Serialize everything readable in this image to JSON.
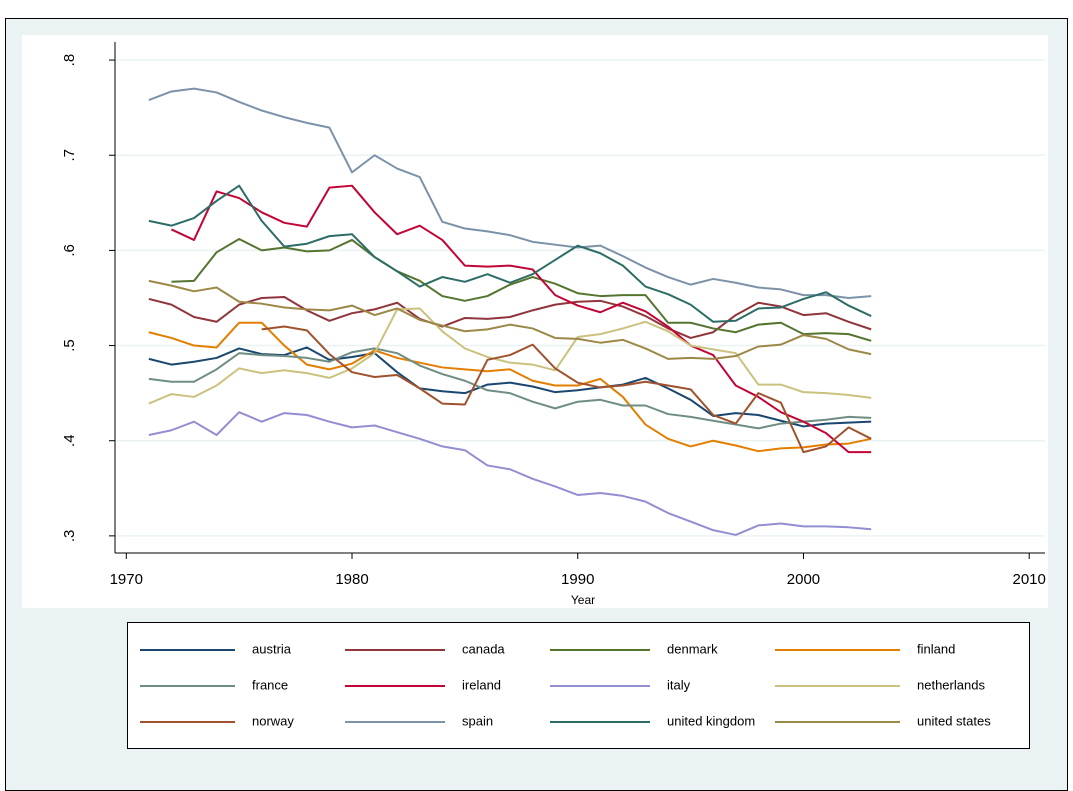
{
  "chart_data": {
    "type": "line",
    "x_label": "Year",
    "x": [
      1971,
      1972,
      1973,
      1974,
      1975,
      1976,
      1977,
      1978,
      1979,
      1980,
      1981,
      1982,
      1983,
      1984,
      1985,
      1986,
      1987,
      1988,
      1989,
      1990,
      1991,
      1992,
      1993,
      1994,
      1995,
      1996,
      1997,
      1998,
      1999,
      2000,
      2001,
      2002,
      2003
    ],
    "xlim": [
      1969.5,
      2010.7
    ],
    "xticks": [
      1970,
      1980,
      1990,
      2000,
      2010
    ],
    "ylim": [
      0.282,
      0.819
    ],
    "yticks": [
      {
        "value": 0.3,
        "label": ".3"
      },
      {
        "value": 0.4,
        "label": ".4"
      },
      {
        "value": 0.5,
        "label": ".5"
      },
      {
        "value": 0.6,
        "label": ".6"
      },
      {
        "value": 0.7,
        "label": ".7"
      },
      {
        "value": 0.8,
        "label": ".8"
      }
    ],
    "grid": true,
    "series": [
      {
        "name": "austria",
        "color": "#1a476f",
        "values": [
          0.486,
          0.48,
          0.483,
          0.487,
          0.497,
          0.491,
          0.49,
          0.498,
          0.485,
          0.488,
          0.492,
          0.472,
          0.455,
          0.452,
          0.45,
          0.459,
          0.461,
          0.457,
          0.451,
          0.453,
          0.456,
          0.459,
          0.466,
          0.455,
          0.443,
          0.426,
          0.429,
          0.427,
          0.421,
          0.415,
          0.418,
          0.419,
          0.42
        ]
      },
      {
        "name": "canada",
        "color": "#90353b",
        "values": [
          0.549,
          0.543,
          0.53,
          0.525,
          0.543,
          0.55,
          0.551,
          0.537,
          0.526,
          0.534,
          0.538,
          0.545,
          0.528,
          0.52,
          0.529,
          0.528,
          0.53,
          0.537,
          0.543,
          0.546,
          0.547,
          0.541,
          0.531,
          0.518,
          0.508,
          0.514,
          0.532,
          0.545,
          0.541,
          0.532,
          0.534,
          0.525,
          0.517
        ]
      },
      {
        "name": "denmark",
        "color": "#55752f",
        "values": [
          null,
          0.567,
          0.568,
          0.598,
          0.612,
          0.6,
          0.603,
          0.599,
          0.6,
          0.611,
          0.593,
          0.578,
          0.568,
          0.552,
          0.547,
          0.552,
          0.564,
          0.572,
          0.565,
          0.555,
          0.552,
          0.553,
          0.553,
          0.524,
          0.524,
          0.518,
          0.514,
          0.522,
          0.524,
          0.512,
          0.513,
          0.512,
          0.505
        ]
      },
      {
        "name": "finland",
        "color": "#e37e00",
        "values": [
          0.514,
          0.508,
          0.5,
          0.498,
          0.524,
          0.524,
          0.5,
          0.48,
          0.475,
          0.481,
          0.495,
          0.487,
          0.482,
          0.477,
          0.475,
          0.473,
          0.475,
          0.463,
          0.458,
          0.458,
          0.465,
          0.446,
          0.417,
          0.402,
          0.394,
          0.4,
          0.395,
          0.389,
          0.392,
          0.393,
          0.396,
          0.397,
          0.402
        ]
      },
      {
        "name": "france",
        "color": "#6e8e84",
        "values": [
          0.465,
          0.462,
          0.462,
          0.475,
          0.492,
          0.49,
          0.489,
          0.487,
          0.483,
          0.493,
          0.497,
          0.492,
          0.479,
          0.47,
          0.463,
          0.453,
          0.45,
          0.441,
          0.434,
          0.441,
          0.443,
          0.437,
          0.437,
          0.428,
          0.425,
          0.421,
          0.417,
          0.413,
          0.418,
          0.42,
          0.422,
          0.425,
          0.424
        ]
      },
      {
        "name": "ireland",
        "color": "#c10534",
        "values": [
          null,
          0.622,
          0.611,
          0.662,
          0.655,
          0.64,
          0.629,
          0.625,
          0.666,
          0.668,
          0.64,
          0.617,
          0.626,
          0.611,
          0.584,
          0.583,
          0.584,
          0.58,
          0.553,
          0.542,
          0.535,
          0.545,
          0.536,
          0.52,
          0.5,
          0.49,
          0.458,
          0.446,
          0.43,
          0.42,
          0.408,
          0.388,
          0.388
        ]
      },
      {
        "name": "italy",
        "color": "#938dd2",
        "values": [
          0.406,
          0.411,
          0.42,
          0.406,
          0.43,
          0.42,
          0.429,
          0.427,
          0.42,
          0.414,
          0.416,
          0.409,
          0.402,
          0.394,
          0.39,
          0.374,
          0.37,
          0.36,
          0.352,
          0.343,
          0.345,
          0.342,
          0.336,
          0.324,
          0.315,
          0.306,
          0.301,
          0.311,
          0.313,
          0.31,
          0.31,
          0.309,
          0.307
        ]
      },
      {
        "name": "netherlands",
        "color": "#cac27e",
        "values": [
          0.439,
          0.449,
          0.446,
          0.458,
          0.476,
          0.471,
          0.474,
          0.471,
          0.466,
          0.476,
          0.492,
          0.538,
          0.539,
          0.515,
          0.497,
          0.488,
          0.482,
          0.48,
          0.474,
          0.509,
          0.512,
          0.518,
          0.525,
          0.515,
          0.5,
          0.496,
          0.492,
          0.459,
          0.459,
          0.451,
          0.45,
          0.448,
          0.445
        ]
      },
      {
        "name": "norway",
        "color": "#a0522d",
        "values": [
          null,
          null,
          null,
          null,
          null,
          0.517,
          0.52,
          0.516,
          0.491,
          0.472,
          0.467,
          0.469,
          0.455,
          0.439,
          0.438,
          0.485,
          0.49,
          0.501,
          0.476,
          0.461,
          0.456,
          0.458,
          0.462,
          0.458,
          0.454,
          0.427,
          0.418,
          0.45,
          0.44,
          0.388,
          0.394,
          0.414,
          0.402
        ]
      },
      {
        "name": "spain",
        "color": "#7b92a8",
        "values": [
          0.758,
          0.767,
          0.77,
          0.766,
          0.756,
          0.747,
          0.74,
          0.734,
          0.729,
          0.682,
          0.7,
          0.686,
          0.677,
          0.63,
          0.623,
          0.62,
          0.616,
          0.609,
          0.606,
          0.603,
          0.605,
          0.594,
          0.582,
          0.572,
          0.564,
          0.57,
          0.566,
          0.561,
          0.559,
          0.553,
          0.553,
          0.55,
          0.552
        ]
      },
      {
        "name": "united kingdom",
        "color": "#2d6d66",
        "values": [
          0.631,
          0.626,
          0.634,
          0.652,
          0.668,
          0.631,
          0.604,
          0.607,
          0.615,
          0.617,
          0.593,
          0.578,
          0.562,
          0.572,
          0.567,
          0.575,
          0.566,
          0.575,
          0.59,
          0.605,
          0.597,
          0.584,
          0.562,
          0.554,
          0.543,
          0.525,
          0.526,
          0.539,
          0.54,
          0.549,
          0.556,
          0.542,
          0.531
        ]
      },
      {
        "name": "united states",
        "color": "#9c8847",
        "values": [
          0.568,
          0.563,
          0.557,
          0.561,
          0.546,
          0.544,
          0.54,
          0.538,
          0.537,
          0.542,
          0.532,
          0.539,
          0.527,
          0.521,
          0.515,
          0.517,
          0.522,
          0.518,
          0.508,
          0.507,
          0.503,
          0.506,
          0.497,
          0.486,
          0.487,
          0.486,
          0.489,
          0.499,
          0.501,
          0.511,
          0.507,
          0.496,
          0.491
        ]
      }
    ]
  }
}
